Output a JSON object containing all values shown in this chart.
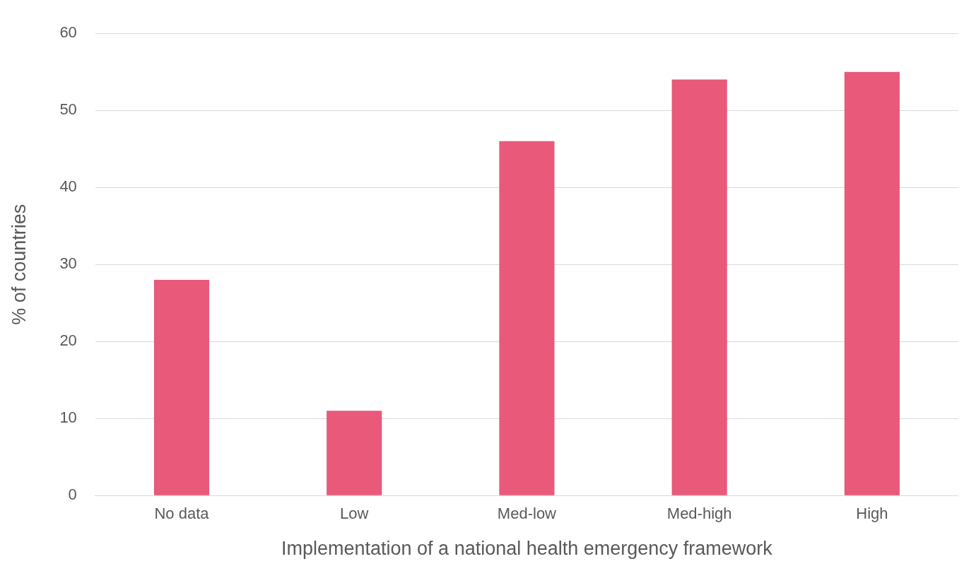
{
  "chart_data": {
    "type": "bar",
    "xlabel": "Implementation of a national health emergency framework",
    "ylabel": "% of countries",
    "categories": [
      "No data",
      "Low",
      "Med-low",
      "Med-high",
      "High"
    ],
    "values": [
      28,
      11,
      46,
      54,
      55
    ],
    "color": "#e8597a",
    "ylim": [
      0,
      60
    ],
    "yticks": [
      0,
      10,
      20,
      30,
      40,
      50,
      60
    ],
    "grid": "y",
    "legend": false
  }
}
